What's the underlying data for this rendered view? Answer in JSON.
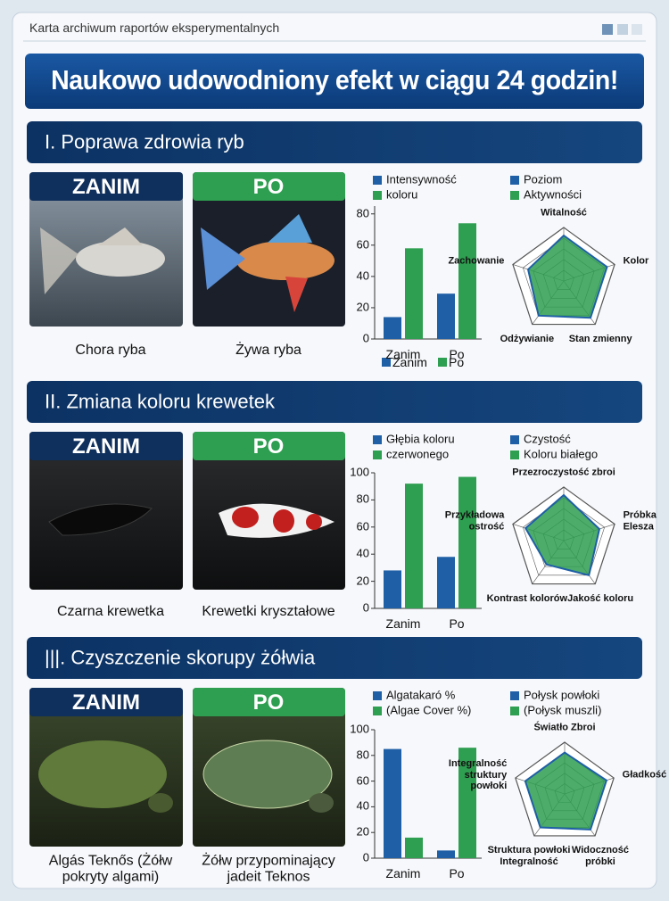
{
  "header": "Karta archiwum raportów eksperymentalnych",
  "banner": "Naukowo udowodniony efekt w ciągu 24 godzin!",
  "sections": [
    {
      "title": "I. Poprawa zdrowia ryb",
      "before_label": "ZANIM",
      "after_label": "PO",
      "before_caption": "Chora ryba",
      "after_caption": "Żywa ryba"
    },
    {
      "title": "II. Zmiana koloru krewetek",
      "before_label": "ZANIM",
      "after_label": "PO",
      "before_caption": "Czarna krewetka",
      "after_caption": "Krewetki kryształowe"
    },
    {
      "title": "|||. Czyszczenie skorupy żółwia",
      "before_label": "ZANIM",
      "after_label": "PO",
      "before_caption": "Algás Teknős (Żółw\npokryty algami)",
      "after_caption": "Żółw przypominający\njadeit Teknos"
    }
  ],
  "chart_data": [
    {
      "type": "bar",
      "categories": [
        "Zanim",
        "Po"
      ],
      "series": [
        {
          "name": "Zanim",
          "color": "#1f5fa6",
          "values": [
            14,
            29
          ]
        },
        {
          "name": "Po",
          "color": "#2e9e50",
          "values": [
            58,
            74
          ]
        }
      ],
      "legend": [
        {
          "label": "Intensywność",
          "color": "#1f5fa6"
        },
        {
          "label": "koloru",
          "color": "#2e9e50"
        },
        {
          "label": "Poziom",
          "color": "#1f5fa6"
        },
        {
          "label": "Aktywności",
          "color": "#2e9e50"
        }
      ],
      "ylim": [
        0,
        85
      ],
      "yticks": [
        0,
        20,
        40,
        60,
        80
      ]
    },
    {
      "type": "radar",
      "labels": [
        "Witalność",
        "Kolor",
        "Stan zmienny",
        "Odżywianie",
        "Zachowanie"
      ],
      "values": [
        85,
        85,
        85,
        80,
        70
      ],
      "rlim": [
        0,
        100
      ],
      "rings": 5,
      "color": "#2e9e50",
      "edge_color": "#1f5fa6"
    },
    {
      "type": "bar",
      "categories": [
        "Zanim",
        "Po"
      ],
      "series": [
        {
          "color": "#1f5fa6",
          "values": [
            28,
            38
          ]
        },
        {
          "color": "#2e9e50",
          "values": [
            92,
            97
          ]
        }
      ],
      "legend": [
        {
          "label": "Głębia koloru",
          "color": "#1f5fa6"
        },
        {
          "label": "czerwonego",
          "color": "#2e9e50"
        },
        {
          "label": "Czystość",
          "color": "#1f5fa6"
        },
        {
          "label": "Koloru białego",
          "color": "#2e9e50"
        }
      ],
      "ylim": [
        0,
        100
      ],
      "yticks": [
        0,
        20,
        40,
        60,
        80,
        100
      ]
    },
    {
      "type": "radar",
      "labels": [
        "Przezroczystość zbroi",
        "Próbka\nElesza",
        "Jakość koloru",
        "Kontrast kolorów",
        "Przykładowa\nostrość"
      ],
      "values": [
        85,
        70,
        80,
        55,
        75
      ],
      "rlim": [
        0,
        100
      ],
      "rings": 5,
      "color": "#2e9e50",
      "edge_color": "#1f5fa6"
    },
    {
      "type": "bar",
      "categories": [
        "Zanim",
        "Po"
      ],
      "series": [
        {
          "color": "#1f5fa6",
          "values": [
            85,
            6
          ]
        },
        {
          "color": "#2e9e50",
          "values": [
            16,
            86
          ]
        }
      ],
      "legend": [
        {
          "label": "Algatakaró %",
          "color": "#1f5fa6"
        },
        {
          "label": "(Algae Cover %)",
          "color": "#2e9e50"
        },
        {
          "label": "Połysk powłoki",
          "color": "#1f5fa6"
        },
        {
          "label": "(Połysk muszli)",
          "color": "#2e9e50"
        }
      ],
      "ylim": [
        0,
        100
      ],
      "yticks": [
        0,
        20,
        40,
        60,
        80,
        100
      ]
    },
    {
      "type": "radar",
      "labels": [
        "Światło Zbroi",
        "Gładkość",
        "Widoczność\npróbki",
        "Struktura powłoki\nIntegralność",
        "Integralność\nstruktury\npowłoki"
      ],
      "values": [
        80,
        85,
        85,
        80,
        80
      ],
      "rlim": [
        0,
        100
      ],
      "rings": 5,
      "color": "#2e9e50",
      "edge_color": "#1f5fa6"
    }
  ]
}
